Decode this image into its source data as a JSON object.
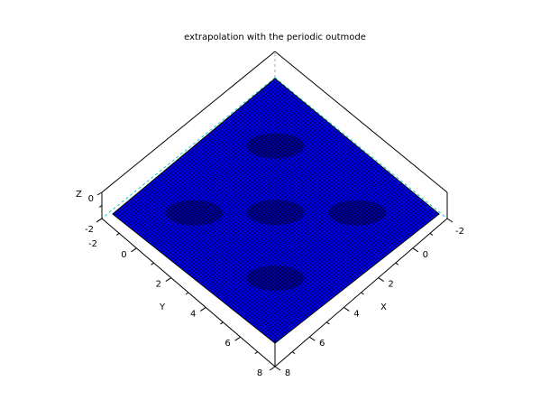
{
  "chart_data": {
    "type": "surface",
    "title": "extrapolation with the periodic outmode",
    "xlabel": "X",
    "ylabel": "Y",
    "zlabel": "Z",
    "xlim": [
      -2,
      8
    ],
    "ylim": [
      -2,
      8
    ],
    "zlim": [
      -2,
      0
    ],
    "x_ticks": [
      "-2",
      "0",
      "2",
      "4",
      "6",
      "8"
    ],
    "y_ticks": [
      "-2",
      "0",
      "2",
      "4",
      "6",
      "8"
    ],
    "z_ticks": [
      "0",
      "-2"
    ],
    "surface_color": "#0000ff",
    "mesh_color": "#000000",
    "grid": false
  }
}
